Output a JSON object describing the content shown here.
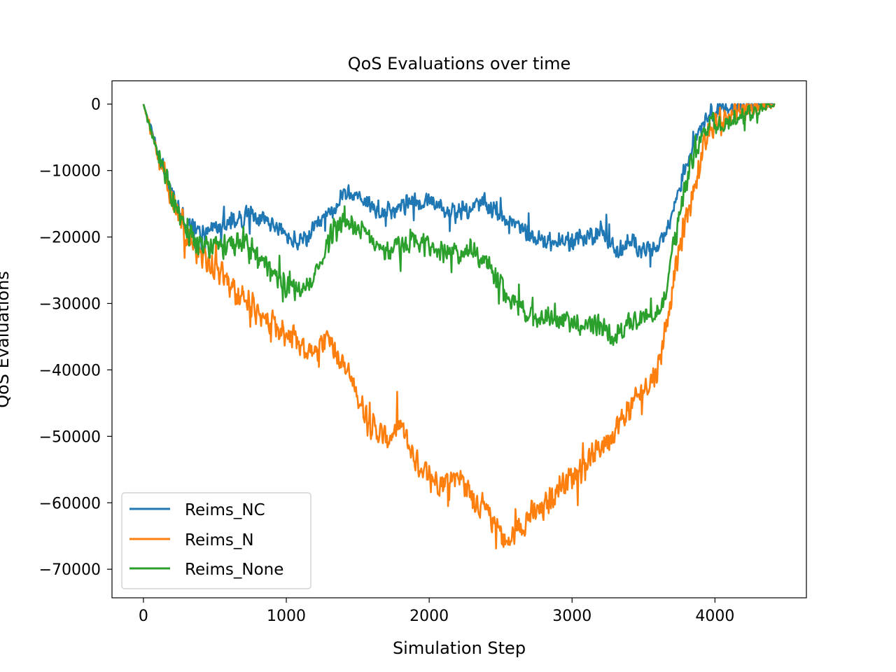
{
  "chart_data": {
    "type": "line",
    "title": "QoS Evaluations over time",
    "xlabel": "Simulation Step",
    "ylabel": "QoS Evaluations",
    "xlim": [
      -220,
      4640
    ],
    "ylim": [
      -74300,
      3500
    ],
    "xticks": [
      0,
      1000,
      2000,
      3000,
      4000
    ],
    "xtick_labels": [
      "0",
      "1000",
      "2000",
      "3000",
      "4000"
    ],
    "yticks": [
      0,
      -10000,
      -20000,
      -30000,
      -40000,
      -50000,
      -60000,
      -70000
    ],
    "ytick_labels": [
      "0",
      "−10000",
      "−20000",
      "−30000",
      "−40000",
      "−50000",
      "−60000",
      "−70000"
    ],
    "grid": false,
    "legend_position": "lower-left",
    "series": [
      {
        "name": "Reims_NC",
        "color": "#1f77b4",
        "x": [
          0,
          100,
          200,
          300,
          400,
          500,
          600,
          700,
          800,
          900,
          1000,
          1100,
          1200,
          1300,
          1400,
          1500,
          1600,
          1700,
          1800,
          1900,
          2000,
          2100,
          2200,
          2300,
          2400,
          2500,
          2600,
          2700,
          2800,
          2900,
          3000,
          3100,
          3200,
          3300,
          3400,
          3500,
          3600,
          3650,
          3700,
          3750,
          3800,
          3850,
          3900,
          3950,
          4000,
          4100,
          4200,
          4300,
          4420
        ],
        "y": [
          0,
          -7000,
          -13500,
          -18000,
          -19500,
          -18500,
          -18000,
          -17000,
          -16500,
          -18000,
          -20000,
          -21000,
          -19000,
          -16500,
          -14000,
          -13500,
          -15500,
          -16000,
          -15500,
          -14500,
          -15000,
          -16000,
          -16500,
          -15500,
          -15000,
          -16500,
          -18000,
          -20000,
          -20500,
          -21000,
          -20500,
          -20000,
          -19000,
          -22000,
          -21000,
          -21500,
          -22000,
          -20000,
          -16500,
          -12500,
          -9000,
          -6000,
          -3000,
          -1500,
          -1200,
          -600,
          -300,
          -100,
          0
        ],
        "noise": 1700
      },
      {
        "name": "Reims_N",
        "color": "#ff7f0e",
        "x": [
          0,
          100,
          200,
          300,
          400,
          500,
          600,
          700,
          800,
          900,
          1000,
          1100,
          1200,
          1300,
          1400,
          1500,
          1600,
          1700,
          1800,
          1900,
          2000,
          2100,
          2200,
          2300,
          2400,
          2500,
          2550,
          2600,
          2700,
          2800,
          2900,
          3000,
          3100,
          3200,
          3300,
          3400,
          3500,
          3600,
          3650,
          3700,
          3750,
          3800,
          3850,
          3900,
          3950,
          4000,
          4100,
          4200,
          4300,
          4420
        ],
        "y": [
          0,
          -8000,
          -14000,
          -19500,
          -23000,
          -25000,
          -27000,
          -29000,
          -31500,
          -33000,
          -34500,
          -36500,
          -37500,
          -35000,
          -39000,
          -44000,
          -48500,
          -50500,
          -48500,
          -53500,
          -56000,
          -57000,
          -55500,
          -59000,
          -61500,
          -64500,
          -66500,
          -64500,
          -62000,
          -61000,
          -57500,
          -56000,
          -54000,
          -51500,
          -49000,
          -46000,
          -43000,
          -40000,
          -34000,
          -28000,
          -22000,
          -17000,
          -13000,
          -8500,
          -5000,
          -3000,
          -1800,
          -900,
          -300,
          0
        ],
        "noise": 2400
      },
      {
        "name": "Reims_None",
        "color": "#2ca02c",
        "x": [
          0,
          100,
          200,
          300,
          400,
          500,
          600,
          700,
          800,
          900,
          1000,
          1100,
          1200,
          1300,
          1400,
          1500,
          1600,
          1700,
          1800,
          1900,
          2000,
          2100,
          2200,
          2300,
          2400,
          2500,
          2600,
          2700,
          2800,
          2900,
          3000,
          3100,
          3200,
          3300,
          3400,
          3500,
          3600,
          3650,
          3700,
          3750,
          3800,
          3850,
          3900,
          3950,
          4000,
          4100,
          4200,
          4300,
          4420
        ],
        "y": [
          0,
          -7500,
          -14000,
          -19000,
          -21500,
          -21500,
          -21000,
          -21000,
          -22500,
          -25500,
          -27500,
          -28500,
          -25500,
          -20000,
          -17500,
          -19000,
          -20500,
          -22000,
          -21500,
          -20500,
          -21500,
          -22500,
          -22500,
          -22000,
          -24000,
          -27000,
          -30000,
          -31500,
          -33000,
          -32000,
          -33500,
          -33000,
          -33500,
          -35000,
          -33000,
          -32000,
          -32000,
          -30000,
          -22000,
          -17000,
          -12000,
          -8000,
          -4500,
          -3500,
          -3000,
          -2500,
          -1500,
          -700,
          0
        ],
        "noise": 2000
      }
    ]
  }
}
